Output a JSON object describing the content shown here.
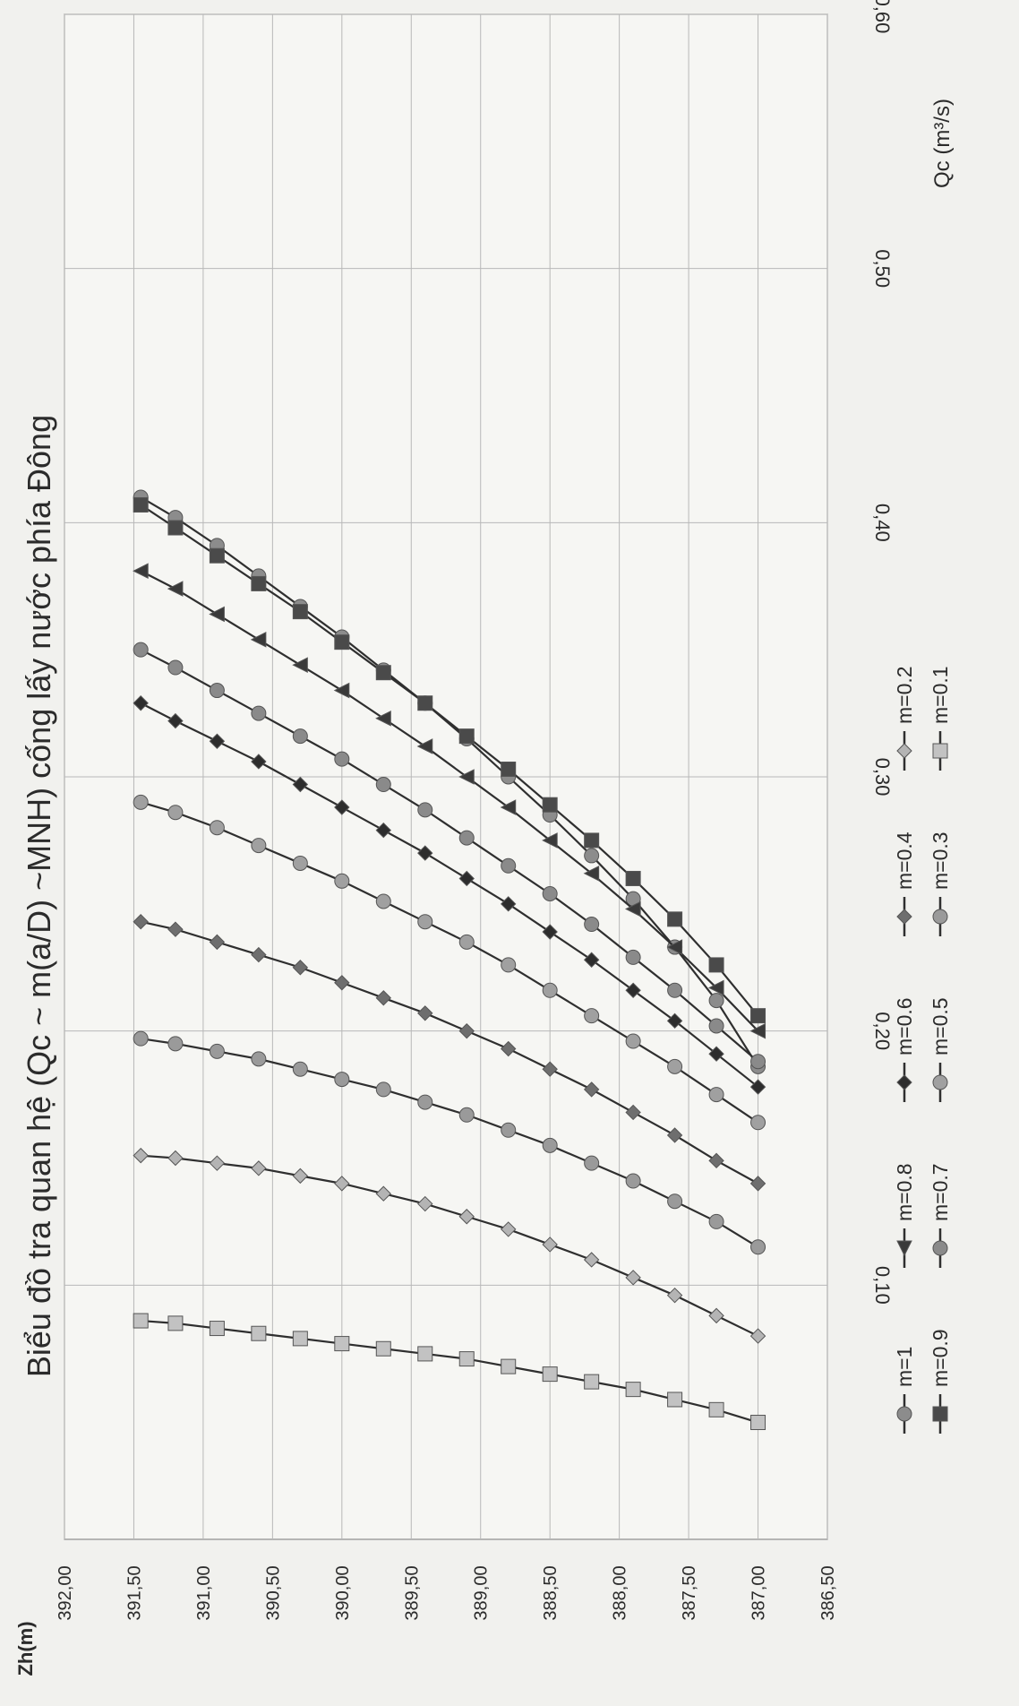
{
  "chart_data": {
    "type": "line",
    "title": "Biểu đồ tra quan hệ (Qc ~ m(a/D) ~MNH) cống lấy nước phía Đông",
    "xlabel": "Qc (m³/s)",
    "ylabel": "Zh(m)",
    "xlim": [
      0.0,
      0.6
    ],
    "ylim": [
      386.5,
      392.0
    ],
    "x_ticks": [
      "0,10",
      "0,20",
      "0,30",
      "0,40",
      "0,50",
      "0,60"
    ],
    "y_ticks": [
      "386,50",
      "387,00",
      "387,50",
      "388,00",
      "388,50",
      "389,00",
      "389,50",
      "390,00",
      "390,50",
      "391,00",
      "391,50",
      "392,00"
    ],
    "grid": true,
    "legend_position": "bottom",
    "y": [
      387.0,
      387.3,
      387.6,
      387.9,
      388.2,
      388.5,
      388.8,
      389.1,
      389.4,
      389.7,
      390.0,
      390.3,
      390.6,
      390.9,
      391.2,
      391.45
    ],
    "series": [
      {
        "name": "m=1",
        "color": "#8c8c8c",
        "marker": "circle",
        "x": [
          0.186,
          0.212,
          0.233,
          0.252,
          0.269,
          0.285,
          0.3,
          0.315,
          0.329,
          0.342,
          0.355,
          0.367,
          0.379,
          0.391,
          0.402,
          0.41
        ]
      },
      {
        "name": "m=0.9",
        "color": "#4a4a4a",
        "marker": "square",
        "x": [
          0.206,
          0.226,
          0.244,
          0.26,
          0.275,
          0.289,
          0.303,
          0.316,
          0.329,
          0.341,
          0.353,
          0.365,
          0.376,
          0.387,
          0.398,
          0.407
        ]
      },
      {
        "name": "m=0.8",
        "color": "#3a3a3a",
        "marker": "triangle",
        "x": [
          0.2,
          0.217,
          0.233,
          0.248,
          0.262,
          0.275,
          0.288,
          0.3,
          0.312,
          0.323,
          0.334,
          0.344,
          0.354,
          0.364,
          0.374,
          0.381
        ]
      },
      {
        "name": "m=0.7",
        "color": "#8a8a8a",
        "marker": "circle",
        "x": [
          0.188,
          0.202,
          0.216,
          0.229,
          0.242,
          0.254,
          0.265,
          0.276,
          0.287,
          0.297,
          0.307,
          0.316,
          0.325,
          0.334,
          0.343,
          0.35
        ]
      },
      {
        "name": "m=0.6",
        "color": "#2d2d2d",
        "marker": "diamond",
        "x": [
          0.178,
          0.191,
          0.204,
          0.216,
          0.228,
          0.239,
          0.25,
          0.26,
          0.27,
          0.279,
          0.288,
          0.297,
          0.306,
          0.314,
          0.322,
          0.329
        ]
      },
      {
        "name": "m=0.5",
        "color": "#a0a0a0",
        "marker": "circle",
        "x": [
          0.164,
          0.175,
          0.186,
          0.196,
          0.206,
          0.216,
          0.226,
          0.235,
          0.243,
          0.251,
          0.259,
          0.266,
          0.273,
          0.28,
          0.286,
          0.29
        ]
      },
      {
        "name": "m=0.4",
        "color": "#6e6e6e",
        "marker": "diamond",
        "x": [
          0.14,
          0.149,
          0.159,
          0.168,
          0.177,
          0.185,
          0.193,
          0.2,
          0.207,
          0.213,
          0.219,
          0.225,
          0.23,
          0.235,
          0.24,
          0.243
        ]
      },
      {
        "name": "m=0.3",
        "color": "#9a9a9a",
        "marker": "circle",
        "x": [
          0.115,
          0.125,
          0.133,
          0.141,
          0.148,
          0.155,
          0.161,
          0.167,
          0.172,
          0.177,
          0.181,
          0.185,
          0.189,
          0.192,
          0.195,
          0.197
        ]
      },
      {
        "name": "m=0.2",
        "color": "#b4b4b4",
        "marker": "diamond",
        "x": [
          0.08,
          0.088,
          0.096,
          0.103,
          0.11,
          0.116,
          0.122,
          0.127,
          0.132,
          0.136,
          0.14,
          0.143,
          0.146,
          0.148,
          0.15,
          0.151
        ]
      },
      {
        "name": "m=0.1",
        "color": "#c2c2c2",
        "marker": "square",
        "x": [
          0.046,
          0.051,
          0.055,
          0.059,
          0.062,
          0.065,
          0.068,
          0.071,
          0.073,
          0.075,
          0.077,
          0.079,
          0.081,
          0.083,
          0.085,
          0.086
        ]
      }
    ]
  }
}
